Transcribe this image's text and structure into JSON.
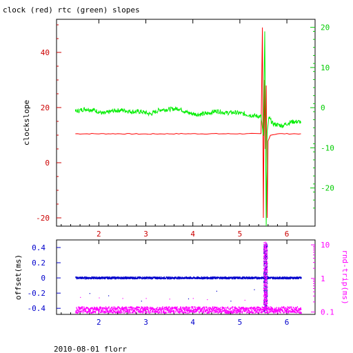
{
  "page": {
    "title": "clock (red) rtc (green) slopes",
    "footer": "2010-08-01 florr"
  },
  "colors": {
    "clock": "#ff0000",
    "rtc": "#00ee00",
    "offset": "#0000cc",
    "rndtrip": "#ff00ff",
    "axis": "#000000"
  },
  "chart_data": [
    {
      "type": "line",
      "title": "clock (red) rtc (green) slopes",
      "ylabel": "clockslope",
      "y2label": "",
      "xlim": [
        1.1,
        6.6
      ],
      "ylim": [
        -23,
        52
      ],
      "y2lim": [
        -29.5,
        22
      ],
      "x_ticks": [
        2,
        3,
        4,
        5,
        6
      ],
      "y_ticks": [
        -20,
        0,
        20,
        40
      ],
      "y2_ticks": [
        -20,
        -10,
        0,
        10,
        20
      ],
      "series": [
        {
          "name": "clock",
          "axis": "left",
          "x": [
            1.5,
            2.0,
            2.5,
            3.0,
            3.5,
            4.0,
            4.5,
            5.0,
            5.45,
            5.48,
            5.5,
            5.52,
            5.54,
            5.56,
            5.58,
            5.6,
            5.65,
            5.8,
            6.3
          ],
          "values": [
            10.5,
            10.5,
            10.5,
            10.4,
            10.5,
            10.5,
            10.5,
            10.5,
            10.5,
            49,
            -20,
            30,
            5,
            28,
            -20,
            8,
            10,
            10.5,
            10.5
          ]
        },
        {
          "name": "rtc",
          "axis": "right",
          "x": [
            1.5,
            1.7,
            1.9,
            2.1,
            2.3,
            2.5,
            2.7,
            2.9,
            3.1,
            3.3,
            3.5,
            3.7,
            3.9,
            4.1,
            4.3,
            4.5,
            4.7,
            4.9,
            5.1,
            5.3,
            5.45,
            5.5,
            5.53,
            5.56,
            5.58,
            5.62,
            5.7,
            5.9,
            6.1,
            6.3
          ],
          "values": [
            -1,
            -0.3,
            -0.6,
            -1.5,
            -0.8,
            -0.6,
            -1,
            -1,
            -1.6,
            -0.5,
            -0.4,
            -0.2,
            -1.3,
            -1.7,
            -1.5,
            -0.8,
            -1.3,
            -1.2,
            -1.6,
            -2,
            -2.2,
            -7,
            19,
            -29.5,
            -6,
            -2.5,
            -4,
            -4.5,
            -3.5,
            -3.5
          ]
        }
      ]
    },
    {
      "type": "scatter",
      "ylabel": "offset(ms)",
      "y2label": "rnd-trip(ms)",
      "xlim": [
        1.1,
        6.6
      ],
      "ylim": [
        -0.48,
        0.5
      ],
      "y2_log": true,
      "y2lim": [
        0.085,
        14
      ],
      "x_ticks": [
        2,
        3,
        4,
        5,
        6
      ],
      "y_ticks": [
        -0.4,
        -0.2,
        0,
        0.2,
        0.4
      ],
      "y2_ticks": [
        0.1,
        1,
        10
      ],
      "series": [
        {
          "name": "offset",
          "axis": "left",
          "baseline": 0.0,
          "spike": {
            "from": 5.5,
            "to": 5.58,
            "min": -0.45,
            "max": 0.45
          },
          "outliers": [
            [
              1.8,
              -0.2
            ],
            [
              2.2,
              -0.23
            ],
            [
              2.9,
              -0.3
            ],
            [
              3.9,
              -0.27
            ],
            [
              4.5,
              -0.17
            ],
            [
              4.8,
              -0.3
            ],
            [
              5.3,
              -0.15
            ]
          ]
        },
        {
          "name": "rnd-trip",
          "axis": "right",
          "baseline": 0.115,
          "spike": {
            "from": 5.5,
            "to": 5.58,
            "min": 0.12,
            "max": 12
          },
          "outliers": [
            [
              1.6,
              0.28
            ],
            [
              2.0,
              0.27
            ],
            [
              2.5,
              0.26
            ],
            [
              3.0,
              0.26
            ],
            [
              3.5,
              0.25
            ],
            [
              4.0,
              0.26
            ],
            [
              4.3,
              0.24
            ],
            [
              5.1,
              0.23
            ]
          ]
        }
      ]
    }
  ]
}
